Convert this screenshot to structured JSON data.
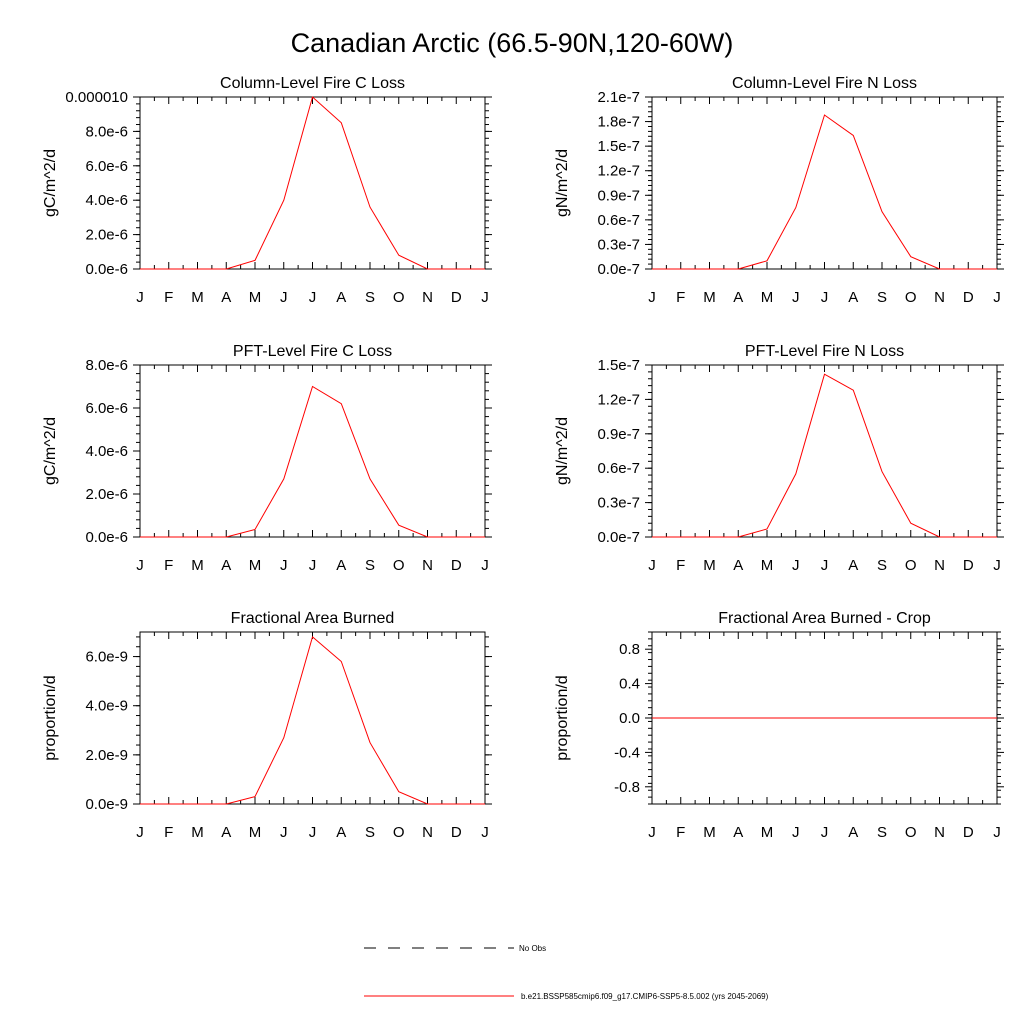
{
  "figure": {
    "title": "Canadian Arctic (66.5-90N,120-60W)"
  },
  "legend": {
    "obs_label": "No Obs",
    "model_label": "b.e21.BSSP585cmip6.f09_g17.CMIP6-SSP5-8.5.002 (yrs 2045-2069)",
    "obs_color": "#000000",
    "model_color": "#ff0000"
  },
  "chart_data": [
    {
      "type": "line",
      "title": "Column-Level Fire C Loss",
      "ylabel": "gC/m^2/d",
      "xlabel": "",
      "x": [
        "J",
        "F",
        "M",
        "A",
        "M",
        "J",
        "J",
        "A",
        "S",
        "O",
        "N",
        "D",
        "J"
      ],
      "ylim": [
        0,
        1e-05
      ],
      "yticks": [
        0,
        2e-06,
        4e-06,
        6e-06,
        8e-06,
        1e-05
      ],
      "ytick_labels": [
        "0.0e-6",
        "2.0e-6",
        "4.0e-6",
        "6.0e-6",
        "8.0e-6",
        "0.000010"
      ],
      "series": [
        {
          "color": "#ff0000",
          "values": [
            0,
            0,
            0,
            0,
            5e-07,
            4e-06,
            1e-05,
            8.5e-06,
            3.6e-06,
            8e-07,
            0,
            0,
            0
          ]
        }
      ]
    },
    {
      "type": "line",
      "title": "Column-Level Fire N Loss",
      "ylabel": "gN/m^2/d",
      "xlabel": "",
      "x": [
        "J",
        "F",
        "M",
        "A",
        "M",
        "J",
        "J",
        "A",
        "S",
        "O",
        "N",
        "D",
        "J"
      ],
      "ylim": [
        0,
        2.1e-07
      ],
      "yticks": [
        0,
        3e-08,
        6e-08,
        9e-08,
        1.2e-07,
        1.5e-07,
        1.8e-07,
        2.1e-07
      ],
      "ytick_labels": [
        "0.0e-7",
        "0.3e-7",
        "0.6e-7",
        "0.9e-7",
        "1.2e-7",
        "1.5e-7",
        "1.8e-7",
        "2.1e-7"
      ],
      "series": [
        {
          "color": "#ff0000",
          "values": [
            0,
            0,
            0,
            0,
            1e-08,
            7.5e-08,
            1.88e-07,
            1.63e-07,
            7e-08,
            1.5e-08,
            0,
            0,
            0
          ]
        }
      ]
    },
    {
      "type": "line",
      "title": "PFT-Level Fire C Loss",
      "ylabel": "gC/m^2/d",
      "xlabel": "",
      "x": [
        "J",
        "F",
        "M",
        "A",
        "M",
        "J",
        "J",
        "A",
        "S",
        "O",
        "N",
        "D",
        "J"
      ],
      "ylim": [
        0,
        8e-06
      ],
      "yticks": [
        0,
        2e-06,
        4e-06,
        6e-06,
        8e-06
      ],
      "ytick_labels": [
        "0.0e-6",
        "2.0e-6",
        "4.0e-6",
        "6.0e-6",
        "8.0e-6"
      ],
      "series": [
        {
          "color": "#ff0000",
          "values": [
            0,
            0,
            0,
            0,
            3.5e-07,
            2.7e-06,
            7e-06,
            6.2e-06,
            2.7e-06,
            5.5e-07,
            0,
            0,
            0
          ]
        }
      ]
    },
    {
      "type": "line",
      "title": "PFT-Level Fire N Loss",
      "ylabel": "gN/m^2/d",
      "xlabel": "",
      "x": [
        "J",
        "F",
        "M",
        "A",
        "M",
        "J",
        "J",
        "A",
        "S",
        "O",
        "N",
        "D",
        "J"
      ],
      "ylim": [
        0,
        1.5e-07
      ],
      "yticks": [
        0,
        3e-08,
        6e-08,
        9e-08,
        1.2e-07,
        1.5e-07
      ],
      "ytick_labels": [
        "0.0e-7",
        "0.3e-7",
        "0.6e-7",
        "0.9e-7",
        "1.2e-7",
        "1.5e-7"
      ],
      "series": [
        {
          "color": "#ff0000",
          "values": [
            0,
            0,
            0,
            0,
            7e-09,
            5.5e-08,
            1.42e-07,
            1.28e-07,
            5.7e-08,
            1.2e-08,
            0,
            0,
            0
          ]
        }
      ]
    },
    {
      "type": "line",
      "title": "Fractional Area Burned",
      "ylabel": "proportion/d",
      "xlabel": "",
      "x": [
        "J",
        "F",
        "M",
        "A",
        "M",
        "J",
        "J",
        "A",
        "S",
        "O",
        "N",
        "D",
        "J"
      ],
      "ylim": [
        0,
        7e-09
      ],
      "yticks": [
        0,
        2e-09,
        4e-09,
        6e-09
      ],
      "ytick_labels": [
        "0.0e-9",
        "2.0e-9",
        "4.0e-9",
        "6.0e-9"
      ],
      "series": [
        {
          "color": "#ff0000",
          "values": [
            0,
            0,
            0,
            0,
            3e-10,
            2.7e-09,
            6.8e-09,
            5.8e-09,
            2.5e-09,
            5e-10,
            0,
            0,
            0
          ]
        }
      ]
    },
    {
      "type": "line",
      "title": "Fractional Area Burned - Crop",
      "ylabel": "proportion/d",
      "xlabel": "",
      "x": [
        "J",
        "F",
        "M",
        "A",
        "M",
        "J",
        "J",
        "A",
        "S",
        "O",
        "N",
        "D",
        "J"
      ],
      "ylim": [
        -1.0,
        1.0
      ],
      "yticks": [
        -0.8,
        -0.4,
        0.0,
        0.4,
        0.8
      ],
      "ytick_labels": [
        "-0.8",
        "-0.4",
        "0.0",
        "0.4",
        "0.8"
      ],
      "series": [
        {
          "color": "#ff0000",
          "values": [
            0,
            0,
            0,
            0,
            0,
            0,
            0,
            0,
            0,
            0,
            0,
            0,
            0
          ]
        }
      ]
    }
  ]
}
